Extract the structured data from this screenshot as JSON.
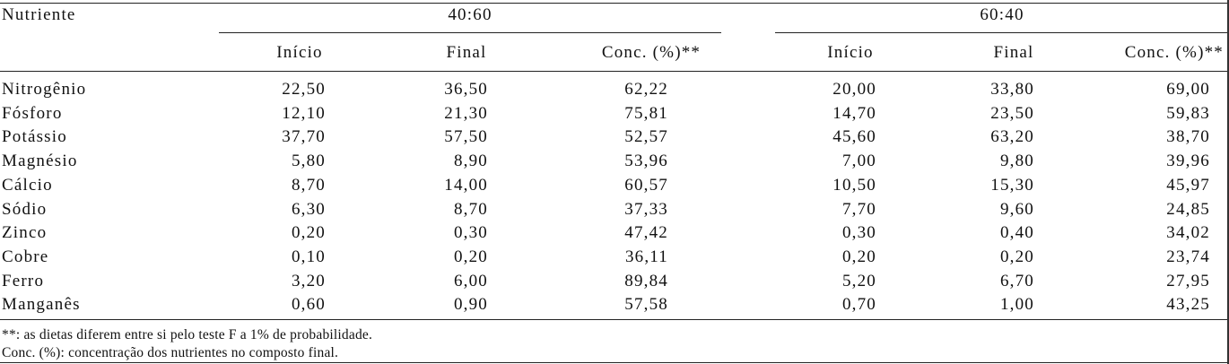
{
  "table": {
    "header": {
      "col0": "Nutriente",
      "group1": "40:60",
      "group2": "60:40",
      "sub": {
        "inicio": "Início",
        "final": "Final",
        "conc": "Conc. (%)**"
      }
    },
    "rows": [
      {
        "name": "Nitrogênio",
        "v": [
          "22,50",
          "36,50",
          "62,22",
          "20,00",
          "33,80",
          "69,00"
        ]
      },
      {
        "name": "Fósforo",
        "v": [
          "12,10",
          "21,30",
          "75,81",
          "14,70",
          "23,50",
          "59,83"
        ]
      },
      {
        "name": "Potássio",
        "v": [
          "37,70",
          "57,50",
          "52,57",
          "45,60",
          "63,20",
          "38,70"
        ]
      },
      {
        "name": "Magnésio",
        "v": [
          "5,80",
          "8,90",
          "53,96",
          "7,00",
          "9,80",
          "39,96"
        ]
      },
      {
        "name": "Cálcio",
        "v": [
          "8,70",
          "14,00",
          "60,57",
          "10,50",
          "15,30",
          "45,97"
        ]
      },
      {
        "name": "Sódio",
        "v": [
          "6,30",
          "8,70",
          "37,33",
          "7,70",
          "9,60",
          "24,85"
        ]
      },
      {
        "name": "Zinco",
        "v": [
          "0,20",
          "0,30",
          "47,42",
          "0,30",
          "0,40",
          "34,02"
        ]
      },
      {
        "name": "Cobre",
        "v": [
          "0,10",
          "0,20",
          "36,11",
          "0,20",
          "0,20",
          "23,74"
        ]
      },
      {
        "name": "Ferro",
        "v": [
          "3,20",
          "6,00",
          "89,84",
          "5,20",
          "6,70",
          "27,95"
        ]
      },
      {
        "name": "Manganês",
        "v": [
          "0,60",
          "0,90",
          "57,58",
          "0,70",
          "1,00",
          "43,25"
        ]
      }
    ]
  },
  "footnotes": [
    "**: as dietas diferem entre si pelo teste F a 1% de probabilidade.",
    "Conc. (%): concentração dos nutrientes no composto final."
  ]
}
